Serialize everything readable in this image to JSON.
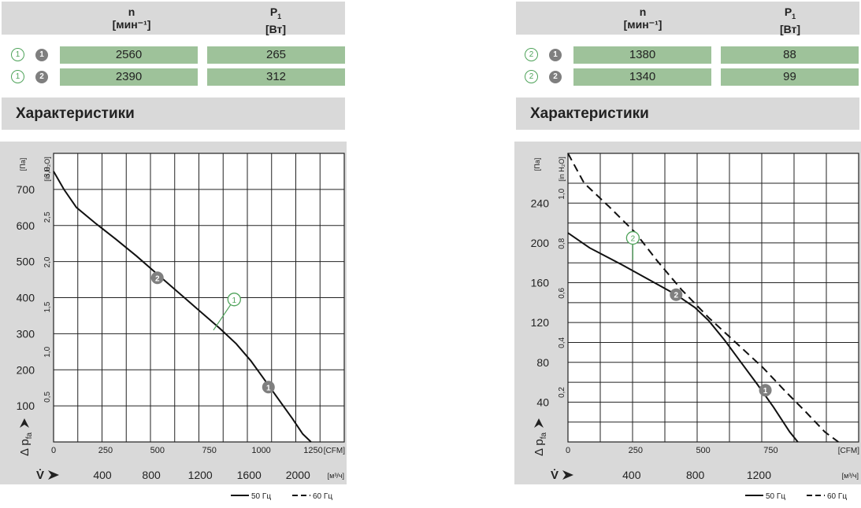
{
  "header": {
    "n_label": "n",
    "n_unit": "[мин⁻¹]",
    "p_label": "P",
    "p_sub": "1",
    "p_unit": "[Вт]"
  },
  "left": {
    "rows": [
      {
        "ring": "1",
        "dot": "1",
        "n": "2560",
        "p": "265"
      },
      {
        "ring": "1",
        "dot": "2",
        "n": "2390",
        "p": "312"
      }
    ],
    "section_title": "Характеристики"
  },
  "right": {
    "rows": [
      {
        "ring": "2",
        "dot": "1",
        "n": "1380",
        "p": "88"
      },
      {
        "ring": "2",
        "dot": "2",
        "n": "1340",
        "p": "99"
      }
    ],
    "section_title": "Характеристики"
  },
  "legend": {
    "solid": "50 Гц",
    "dashed": "60 Гц"
  },
  "colors": {
    "band": "#d9d9d9",
    "cell": "#9ec29a",
    "ring": "#4fa35a",
    "dot": "#7f7f7f"
  },
  "chart_data": [
    {
      "type": "line",
      "y_pa_label": "[Па]",
      "y_inh2o_label": "[in H₂O]",
      "y_axis_symbol": "Δ p",
      "y_axis_sub": "fa",
      "x_cfm_label": "[CFM]",
      "x_m3h_label": "[м³/ч]",
      "x_axis_symbol": "V̇",
      "xlim_cfm": [
        0,
        1400
      ],
      "ylim_pa": [
        0,
        800
      ],
      "grid": true,
      "y_pa_ticks": [
        "100",
        "200",
        "300",
        "400",
        "500",
        "600",
        "700"
      ],
      "y_pa_values": [
        100,
        200,
        300,
        400,
        500,
        600,
        700
      ],
      "y_in_ticks": [
        "0,5",
        "1,0",
        "1,5",
        "2,0",
        "2,5",
        "3,0"
      ],
      "y_in_values": [
        0.5,
        1.0,
        1.5,
        2.0,
        2.5,
        3.0
      ],
      "x_cfm_ticks": [
        "0",
        "250",
        "500",
        "750",
        "1000",
        "1250"
      ],
      "x_cfm_values": [
        0,
        250,
        500,
        750,
        1000,
        1250
      ],
      "x_m3h_ticks": [
        "400",
        "800",
        "1200",
        "1600",
        "2000"
      ],
      "x_m3h_values": [
        400,
        800,
        1200,
        1600,
        2000
      ],
      "series": [
        {
          "style": "solid",
          "x": [
            0,
            50,
            110,
            200,
            300,
            400,
            500,
            600,
            700,
            800,
            880,
            950,
            1000,
            1050,
            1100,
            1150,
            1200,
            1240
          ],
          "y": [
            750,
            700,
            650,
            607,
            562,
            515,
            465,
            415,
            365,
            315,
            272,
            225,
            185,
            145,
            105,
            65,
            22,
            0
          ]
        }
      ],
      "marker_ring": "1",
      "ring_anchor": [
        770,
        310
      ],
      "ring_pos": [
        870,
        395
      ],
      "dots": [
        {
          "label": "2",
          "x": 500,
          "y": 455
        },
        {
          "label": "1",
          "x": 1035,
          "y": 152
        }
      ]
    },
    {
      "type": "line",
      "y_pa_label": "[Па]",
      "y_inh2o_label": "[in H₂O]",
      "y_axis_symbol": "Δ p",
      "y_axis_sub": "fa",
      "x_cfm_label": "[CFM]",
      "x_m3h_label": "[м³/ч]",
      "x_axis_symbol": "V̇",
      "xlim_cfm": [
        0,
        1075
      ],
      "ylim_pa": [
        0,
        290
      ],
      "grid": true,
      "y_pa_ticks": [
        "40",
        "80",
        "120",
        "160",
        "200",
        "240"
      ],
      "y_pa_values": [
        40,
        80,
        120,
        160,
        200,
        240
      ],
      "y_in_ticks": [
        "0,2",
        "0,4",
        "0,6",
        "0,8",
        "1,0"
      ],
      "y_in_values": [
        0.2,
        0.4,
        0.6,
        0.8,
        1.0
      ],
      "x_cfm_ticks": [
        "0",
        "250",
        "500",
        "750"
      ],
      "x_cfm_values": [
        0,
        250,
        500,
        750
      ],
      "x_m3h_ticks": [
        "400",
        "800",
        "1200"
      ],
      "x_m3h_values": [
        400,
        800,
        1200
      ],
      "series": [
        {
          "style": "solid",
          "x": [
            0,
            80,
            200,
            300,
            400,
            470,
            520,
            580,
            640,
            700,
            760,
            820,
            850
          ],
          "y": [
            210,
            195,
            178,
            163,
            148,
            135,
            122,
            102,
            80,
            58,
            35,
            10,
            0
          ]
        },
        {
          "style": "dashed",
          "x": [
            0,
            60,
            150,
            250,
            330,
            420,
            520,
            620,
            720,
            800,
            880,
            950,
            1000
          ],
          "y": [
            290,
            260,
            237,
            210,
            182,
            153,
            125,
            100,
            75,
            52,
            30,
            10,
            0
          ]
        }
      ],
      "marker_ring": "2",
      "ring_anchor": [
        240,
        183
      ],
      "ring_pos": [
        240,
        205
      ],
      "dots": [
        {
          "label": "2",
          "x": 400,
          "y": 148
        },
        {
          "label": "1",
          "x": 730,
          "y": 52
        }
      ]
    }
  ]
}
